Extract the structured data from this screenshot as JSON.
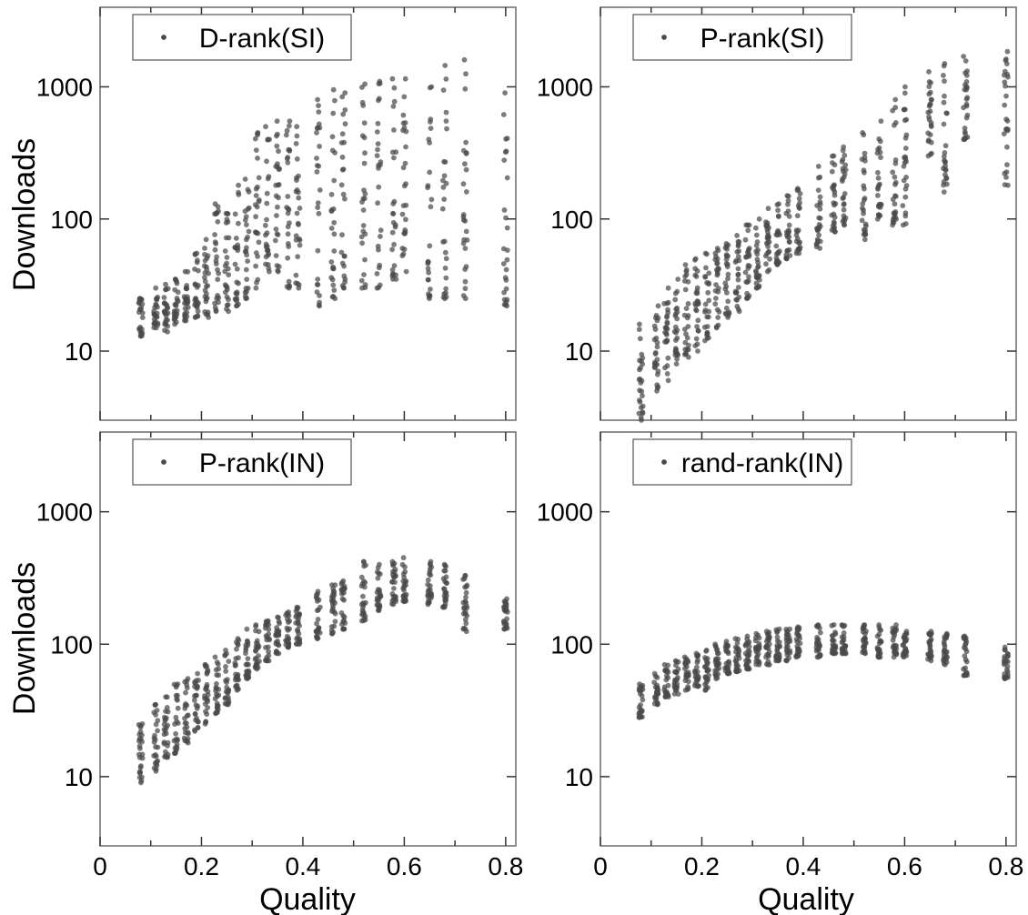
{
  "figure": {
    "x_axis_label": "Quality",
    "y_axis_label": "Downloads"
  },
  "chart_data": [
    {
      "type": "scatter",
      "legend": "D-rank(SI)",
      "xlabel": "",
      "ylabel": "Downloads",
      "xlim": [
        0,
        0.82
      ],
      "ylim": [
        3,
        4000
      ],
      "yscale": "log",
      "xticks": [
        "0",
        "0.2",
        "0.4",
        "0.6",
        "0.8"
      ],
      "yticks": [
        "10",
        "100",
        "1000"
      ],
      "legend_position": "top-left",
      "marker_color": "#4a4a4a",
      "columns": [
        {
          "x": 0.08,
          "min": 13,
          "max": 25
        },
        {
          "x": 0.11,
          "min": 15,
          "max": 30
        },
        {
          "x": 0.13,
          "min": 14,
          "max": 32
        },
        {
          "x": 0.15,
          "min": 16,
          "max": 35
        },
        {
          "x": 0.17,
          "min": 17,
          "max": 40
        },
        {
          "x": 0.19,
          "min": 18,
          "max": 55
        },
        {
          "x": 0.21,
          "min": 18,
          "max": 70
        },
        {
          "x": 0.23,
          "min": 20,
          "max": 130
        },
        {
          "x": 0.25,
          "min": 20,
          "max": 110
        },
        {
          "x": 0.27,
          "min": 22,
          "max": 180
        },
        {
          "x": 0.29,
          "min": 25,
          "max": 200
        },
        {
          "x": 0.31,
          "min": 30,
          "max": 450
        },
        {
          "x": 0.33,
          "min": 40,
          "max": 500
        },
        {
          "x": 0.35,
          "min": 40,
          "max": 550
        },
        {
          "x": 0.37,
          "min": 30,
          "max": 550
        },
        {
          "x": 0.39,
          "min": 30,
          "max": 500
        },
        {
          "x": 0.43,
          "min": 22,
          "max": 800
        },
        {
          "x": 0.46,
          "min": 25,
          "max": 950
        },
        {
          "x": 0.48,
          "min": 30,
          "max": 900
        },
        {
          "x": 0.52,
          "min": 30,
          "max": 1050
        },
        {
          "x": 0.55,
          "min": 30,
          "max": 1100
        },
        {
          "x": 0.58,
          "min": 35,
          "max": 1150
        },
        {
          "x": 0.6,
          "min": 40,
          "max": 1150
        },
        {
          "x": 0.65,
          "min": 25,
          "max": 1000
        },
        {
          "x": 0.68,
          "min": 25,
          "max": 1450
        },
        {
          "x": 0.72,
          "min": 25,
          "max": 1600
        },
        {
          "x": 0.8,
          "min": 22,
          "max": 900
        }
      ]
    },
    {
      "type": "scatter",
      "legend": "P-rank(SI)",
      "xlabel": "",
      "ylabel": "",
      "xlim": [
        0,
        0.82
      ],
      "ylim": [
        3,
        4000
      ],
      "yscale": "log",
      "xticks": [
        "0",
        "0.2",
        "0.4",
        "0.6",
        "0.8"
      ],
      "yticks": [
        "10",
        "100",
        "1000"
      ],
      "legend_position": "top-left",
      "marker_color": "#4a4a4a",
      "columns": [
        {
          "x": 0.08,
          "min": 3,
          "max": 16
        },
        {
          "x": 0.11,
          "min": 5,
          "max": 22
        },
        {
          "x": 0.13,
          "min": 6,
          "max": 30
        },
        {
          "x": 0.15,
          "min": 8,
          "max": 35
        },
        {
          "x": 0.17,
          "min": 9,
          "max": 45
        },
        {
          "x": 0.19,
          "min": 10,
          "max": 50
        },
        {
          "x": 0.21,
          "min": 12,
          "max": 55
        },
        {
          "x": 0.23,
          "min": 15,
          "max": 60
        },
        {
          "x": 0.25,
          "min": 18,
          "max": 65
        },
        {
          "x": 0.27,
          "min": 20,
          "max": 75
        },
        {
          "x": 0.29,
          "min": 25,
          "max": 90
        },
        {
          "x": 0.31,
          "min": 30,
          "max": 100
        },
        {
          "x": 0.33,
          "min": 40,
          "max": 120
        },
        {
          "x": 0.35,
          "min": 45,
          "max": 130
        },
        {
          "x": 0.37,
          "min": 50,
          "max": 150
        },
        {
          "x": 0.39,
          "min": 55,
          "max": 170
        },
        {
          "x": 0.43,
          "min": 60,
          "max": 250
        },
        {
          "x": 0.46,
          "min": 80,
          "max": 300
        },
        {
          "x": 0.48,
          "min": 90,
          "max": 350
        },
        {
          "x": 0.52,
          "min": 70,
          "max": 450
        },
        {
          "x": 0.55,
          "min": 100,
          "max": 550
        },
        {
          "x": 0.58,
          "min": 90,
          "max": 800
        },
        {
          "x": 0.6,
          "min": 90,
          "max": 1000
        },
        {
          "x": 0.65,
          "min": 300,
          "max": 1300
        },
        {
          "x": 0.68,
          "min": 160,
          "max": 1500
        },
        {
          "x": 0.72,
          "min": 400,
          "max": 1700
        },
        {
          "x": 0.8,
          "min": 180,
          "max": 1850
        }
      ]
    },
    {
      "type": "scatter",
      "legend": "P-rank(IN)",
      "xlabel": "Quality",
      "ylabel": "Downloads",
      "xlim": [
        0,
        0.82
      ],
      "ylim": [
        3,
        4000
      ],
      "yscale": "log",
      "xticks": [
        "0",
        "0.2",
        "0.4",
        "0.6",
        "0.8"
      ],
      "yticks": [
        "10",
        "100",
        "1000"
      ],
      "legend_position": "top-left",
      "marker_color": "#4a4a4a",
      "columns": [
        {
          "x": 0.08,
          "min": 9,
          "max": 25
        },
        {
          "x": 0.11,
          "min": 11,
          "max": 35
        },
        {
          "x": 0.13,
          "min": 14,
          "max": 40
        },
        {
          "x": 0.15,
          "min": 15,
          "max": 50
        },
        {
          "x": 0.17,
          "min": 18,
          "max": 55
        },
        {
          "x": 0.19,
          "min": 22,
          "max": 60
        },
        {
          "x": 0.21,
          "min": 25,
          "max": 70
        },
        {
          "x": 0.23,
          "min": 30,
          "max": 80
        },
        {
          "x": 0.25,
          "min": 35,
          "max": 90
        },
        {
          "x": 0.27,
          "min": 45,
          "max": 110
        },
        {
          "x": 0.29,
          "min": 55,
          "max": 130
        },
        {
          "x": 0.31,
          "min": 65,
          "max": 140
        },
        {
          "x": 0.33,
          "min": 75,
          "max": 150
        },
        {
          "x": 0.35,
          "min": 85,
          "max": 160
        },
        {
          "x": 0.37,
          "min": 95,
          "max": 175
        },
        {
          "x": 0.39,
          "min": 100,
          "max": 190
        },
        {
          "x": 0.43,
          "min": 110,
          "max": 250
        },
        {
          "x": 0.46,
          "min": 120,
          "max": 280
        },
        {
          "x": 0.48,
          "min": 130,
          "max": 300
        },
        {
          "x": 0.52,
          "min": 150,
          "max": 420
        },
        {
          "x": 0.55,
          "min": 180,
          "max": 400
        },
        {
          "x": 0.58,
          "min": 200,
          "max": 420
        },
        {
          "x": 0.6,
          "min": 210,
          "max": 450
        },
        {
          "x": 0.65,
          "min": 200,
          "max": 420
        },
        {
          "x": 0.68,
          "min": 190,
          "max": 400
        },
        {
          "x": 0.72,
          "min": 125,
          "max": 330
        },
        {
          "x": 0.8,
          "min": 130,
          "max": 220
        }
      ]
    },
    {
      "type": "scatter",
      "legend": "rand-rank(IN)",
      "xlabel": "Quality",
      "ylabel": "",
      "xlim": [
        0,
        0.82
      ],
      "ylim": [
        3,
        4000
      ],
      "yscale": "log",
      "xticks": [
        "0",
        "0.2",
        "0.4",
        "0.6",
        "0.8"
      ],
      "yticks": [
        "10",
        "100",
        "1000"
      ],
      "legend_position": "top-left",
      "marker_color": "#4a4a4a",
      "columns": [
        {
          "x": 0.08,
          "min": 28,
          "max": 50
        },
        {
          "x": 0.11,
          "min": 35,
          "max": 60
        },
        {
          "x": 0.13,
          "min": 40,
          "max": 70
        },
        {
          "x": 0.15,
          "min": 42,
          "max": 75
        },
        {
          "x": 0.17,
          "min": 45,
          "max": 80
        },
        {
          "x": 0.19,
          "min": 48,
          "max": 85
        },
        {
          "x": 0.21,
          "min": 45,
          "max": 90
        },
        {
          "x": 0.23,
          "min": 55,
          "max": 100
        },
        {
          "x": 0.25,
          "min": 60,
          "max": 105
        },
        {
          "x": 0.27,
          "min": 62,
          "max": 110
        },
        {
          "x": 0.29,
          "min": 65,
          "max": 115
        },
        {
          "x": 0.31,
          "min": 70,
          "max": 120
        },
        {
          "x": 0.33,
          "min": 70,
          "max": 125
        },
        {
          "x": 0.35,
          "min": 75,
          "max": 130
        },
        {
          "x": 0.37,
          "min": 75,
          "max": 130
        },
        {
          "x": 0.39,
          "min": 80,
          "max": 135
        },
        {
          "x": 0.43,
          "min": 80,
          "max": 140
        },
        {
          "x": 0.46,
          "min": 85,
          "max": 140
        },
        {
          "x": 0.48,
          "min": 85,
          "max": 140
        },
        {
          "x": 0.52,
          "min": 85,
          "max": 140
        },
        {
          "x": 0.55,
          "min": 80,
          "max": 140
        },
        {
          "x": 0.58,
          "min": 80,
          "max": 140
        },
        {
          "x": 0.6,
          "min": 80,
          "max": 125
        },
        {
          "x": 0.65,
          "min": 75,
          "max": 125
        },
        {
          "x": 0.68,
          "min": 70,
          "max": 120
        },
        {
          "x": 0.72,
          "min": 58,
          "max": 115
        },
        {
          "x": 0.8,
          "min": 55,
          "max": 95
        }
      ]
    }
  ]
}
